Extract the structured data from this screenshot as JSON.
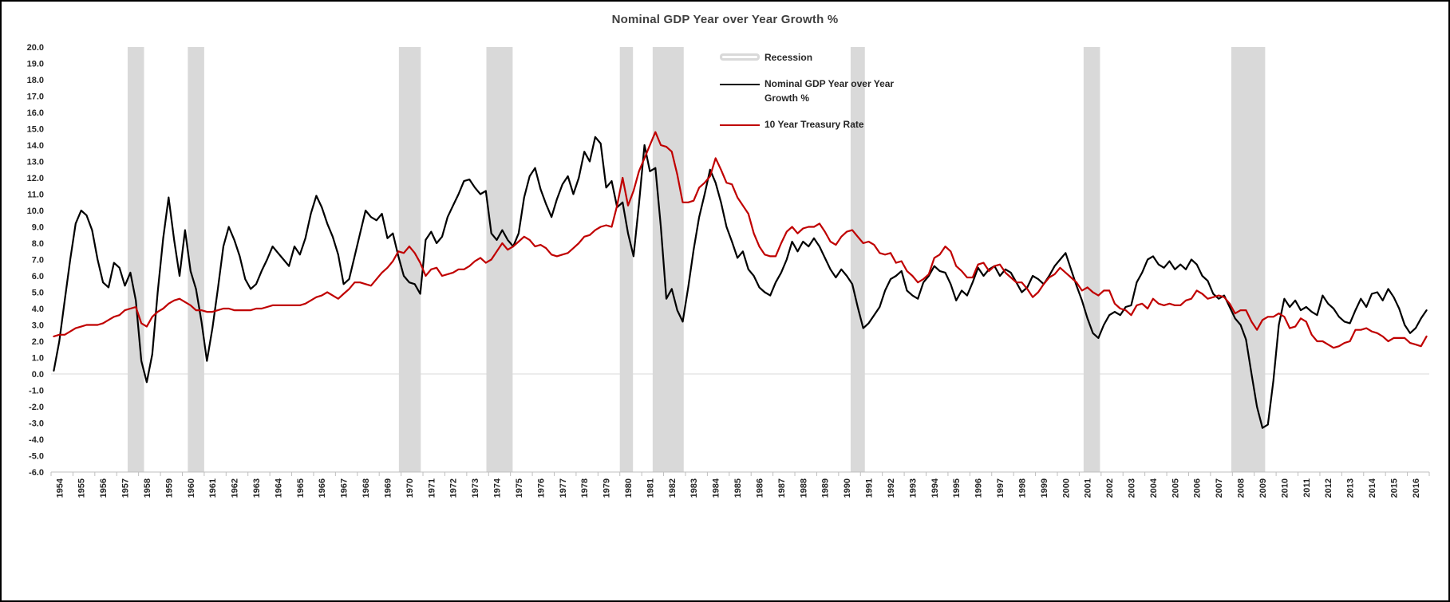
{
  "title": "Nominal GDP Year over Year Growth %",
  "legend": {
    "recession_label": "Recession",
    "gdp_label_line1": "Nominal GDP Year over Year",
    "gdp_label_line2": "Growth %",
    "treasury_label": "10 Year Treasury Rate"
  },
  "colors": {
    "gdp": "#000000",
    "treasury": "#C00000",
    "recession": "#D9D9D9",
    "title": "#404040",
    "axis_text": "#262626",
    "axis_line": "#BFBFBF",
    "zero_line": "#D9D9D9"
  },
  "chart_data": {
    "type": "line",
    "title": "Nominal GDP Year over Year Growth %",
    "xlabel": "",
    "ylabel": "",
    "x_start_year": 1954,
    "x_end_year": 2016,
    "points_per_year": 4,
    "ylim": [
      -6,
      20
    ],
    "ytick_step": 1,
    "grid": false,
    "legend_position": "top-right",
    "recession_bands": [
      [
        1957.5,
        1958.25
      ],
      [
        1960.25,
        1961.0
      ],
      [
        1969.9,
        1970.9
      ],
      [
        1973.9,
        1975.1
      ],
      [
        1980.0,
        1980.6
      ],
      [
        1981.5,
        1982.92
      ],
      [
        1990.55,
        1991.2
      ],
      [
        2001.2,
        2001.95
      ],
      [
        2007.95,
        2009.5
      ]
    ],
    "series": [
      {
        "name": "Nominal GDP Year over Year Growth %",
        "color": "#000000",
        "values": [
          0.2,
          2.0,
          4.5,
          7.0,
          9.2,
          10.0,
          9.7,
          8.8,
          7.0,
          5.6,
          5.3,
          6.8,
          6.5,
          5.4,
          6.2,
          4.5,
          0.8,
          -0.5,
          1.2,
          5.0,
          8.3,
          10.8,
          8.2,
          6.0,
          8.8,
          6.3,
          5.2,
          3.2,
          0.8,
          2.8,
          5.2,
          7.8,
          9.0,
          8.2,
          7.2,
          5.8,
          5.2,
          5.5,
          6.3,
          7.0,
          7.8,
          7.4,
          7.0,
          6.6,
          7.8,
          7.3,
          8.3,
          9.8,
          10.9,
          10.2,
          9.2,
          8.4,
          7.3,
          5.5,
          5.8,
          7.2,
          8.6,
          10.0,
          9.6,
          9.4,
          9.8,
          8.3,
          8.6,
          7.2,
          6.0,
          5.6,
          5.5,
          4.9,
          8.2,
          8.7,
          8.0,
          8.4,
          9.6,
          10.3,
          11.0,
          11.8,
          11.9,
          11.4,
          11.0,
          11.2,
          8.6,
          8.2,
          8.8,
          8.2,
          7.8,
          8.6,
          10.8,
          12.1,
          12.6,
          11.3,
          10.4,
          9.6,
          10.7,
          11.6,
          12.1,
          11.0,
          12.0,
          13.6,
          13.0,
          14.5,
          14.1,
          11.4,
          11.8,
          10.2,
          10.5,
          8.6,
          7.2,
          10.4,
          14.0,
          12.4,
          12.6,
          9.0,
          4.6,
          5.2,
          3.9,
          3.2,
          5.3,
          7.6,
          9.6,
          11.0,
          12.5,
          11.7,
          10.5,
          9.0,
          8.1,
          7.1,
          7.5,
          6.4,
          6.0,
          5.3,
          5.0,
          4.8,
          5.6,
          6.2,
          7.0,
          8.1,
          7.5,
          8.1,
          7.8,
          8.3,
          7.8,
          7.1,
          6.4,
          5.9,
          6.4,
          6.0,
          5.5,
          4.1,
          2.8,
          3.1,
          3.6,
          4.1,
          5.1,
          5.8,
          6.0,
          6.3,
          5.1,
          4.8,
          4.6,
          5.6,
          6.0,
          6.6,
          6.3,
          6.2,
          5.5,
          4.5,
          5.1,
          4.8,
          5.6,
          6.5,
          6.0,
          6.4,
          6.6,
          6.0,
          6.4,
          6.2,
          5.6,
          5.0,
          5.3,
          6.0,
          5.8,
          5.5,
          6.0,
          6.6,
          7.0,
          7.4,
          6.4,
          5.4,
          4.5,
          3.4,
          2.5,
          2.2,
          3.0,
          3.6,
          3.8,
          3.6,
          4.1,
          4.2,
          5.6,
          6.2,
          7.0,
          7.2,
          6.7,
          6.5,
          6.9,
          6.4,
          6.7,
          6.4,
          7.0,
          6.7,
          6.0,
          5.7,
          4.9,
          4.6,
          4.8,
          4.1,
          3.4,
          3.0,
          2.1,
          0.0,
          -2.0,
          -3.3,
          -3.1,
          -0.4,
          3.0,
          4.6,
          4.1,
          4.5,
          3.9,
          4.1,
          3.8,
          3.6,
          4.8,
          4.3,
          4.0,
          3.5,
          3.2,
          3.1,
          3.9,
          4.6,
          4.1,
          4.9,
          5.0,
          4.5,
          5.2,
          4.7,
          4.0,
          3.0,
          2.5,
          2.8,
          3.4,
          3.9
        ]
      },
      {
        "name": "10 Year Treasury Rate",
        "color": "#C00000",
        "values": [
          2.3,
          2.4,
          2.4,
          2.6,
          2.8,
          2.9,
          3.0,
          3.0,
          3.0,
          3.1,
          3.3,
          3.5,
          3.6,
          3.9,
          4.0,
          4.1,
          3.1,
          2.9,
          3.5,
          3.8,
          4.0,
          4.3,
          4.5,
          4.6,
          4.4,
          4.2,
          3.9,
          3.9,
          3.8,
          3.8,
          3.9,
          4.0,
          4.0,
          3.9,
          3.9,
          3.9,
          3.9,
          4.0,
          4.0,
          4.1,
          4.2,
          4.2,
          4.2,
          4.2,
          4.2,
          4.2,
          4.3,
          4.5,
          4.7,
          4.8,
          5.0,
          4.8,
          4.6,
          4.9,
          5.2,
          5.6,
          5.6,
          5.5,
          5.4,
          5.8,
          6.2,
          6.5,
          6.9,
          7.5,
          7.4,
          7.8,
          7.4,
          6.8,
          6.0,
          6.4,
          6.5,
          6.0,
          6.1,
          6.2,
          6.4,
          6.4,
          6.6,
          6.9,
          7.1,
          6.8,
          7.0,
          7.5,
          8.0,
          7.6,
          7.8,
          8.1,
          8.4,
          8.2,
          7.8,
          7.9,
          7.7,
          7.3,
          7.2,
          7.3,
          7.4,
          7.7,
          8.0,
          8.4,
          8.5,
          8.8,
          9.0,
          9.1,
          9.0,
          10.3,
          12.0,
          10.3,
          11.2,
          12.4,
          13.2,
          14.0,
          14.8,
          14.0,
          13.9,
          13.6,
          12.2,
          10.5,
          10.5,
          10.6,
          11.4,
          11.7,
          12.1,
          13.2,
          12.5,
          11.7,
          11.6,
          10.8,
          10.3,
          9.8,
          8.6,
          7.8,
          7.3,
          7.2,
          7.2,
          8.0,
          8.7,
          9.0,
          8.6,
          8.9,
          9.0,
          9.0,
          9.2,
          8.7,
          8.1,
          7.9,
          8.4,
          8.7,
          8.8,
          8.4,
          8.0,
          8.1,
          7.9,
          7.4,
          7.3,
          7.4,
          6.8,
          6.9,
          6.3,
          6.0,
          5.6,
          5.8,
          6.1,
          7.1,
          7.3,
          7.8,
          7.5,
          6.6,
          6.3,
          5.9,
          5.9,
          6.7,
          6.8,
          6.3,
          6.6,
          6.7,
          6.2,
          5.9,
          5.6,
          5.6,
          5.2,
          4.7,
          5.0,
          5.5,
          5.9,
          6.1,
          6.5,
          6.2,
          5.9,
          5.6,
          5.1,
          5.3,
          5.0,
          4.8,
          5.1,
          5.1,
          4.3,
          4.0,
          3.9,
          3.6,
          4.2,
          4.3,
          4.0,
          4.6,
          4.3,
          4.2,
          4.3,
          4.2,
          4.2,
          4.5,
          4.6,
          5.1,
          4.9,
          4.6,
          4.7,
          4.8,
          4.7,
          4.3,
          3.7,
          3.9,
          3.9,
          3.2,
          2.7,
          3.3,
          3.5,
          3.5,
          3.7,
          3.5,
          2.8,
          2.9,
          3.4,
          3.2,
          2.4,
          2.0,
          2.0,
          1.8,
          1.6,
          1.7,
          1.9,
          2.0,
          2.7,
          2.7,
          2.8,
          2.6,
          2.5,
          2.3,
          2.0,
          2.2,
          2.2,
          2.2,
          1.9,
          1.8,
          1.7,
          2.3
        ]
      }
    ]
  }
}
